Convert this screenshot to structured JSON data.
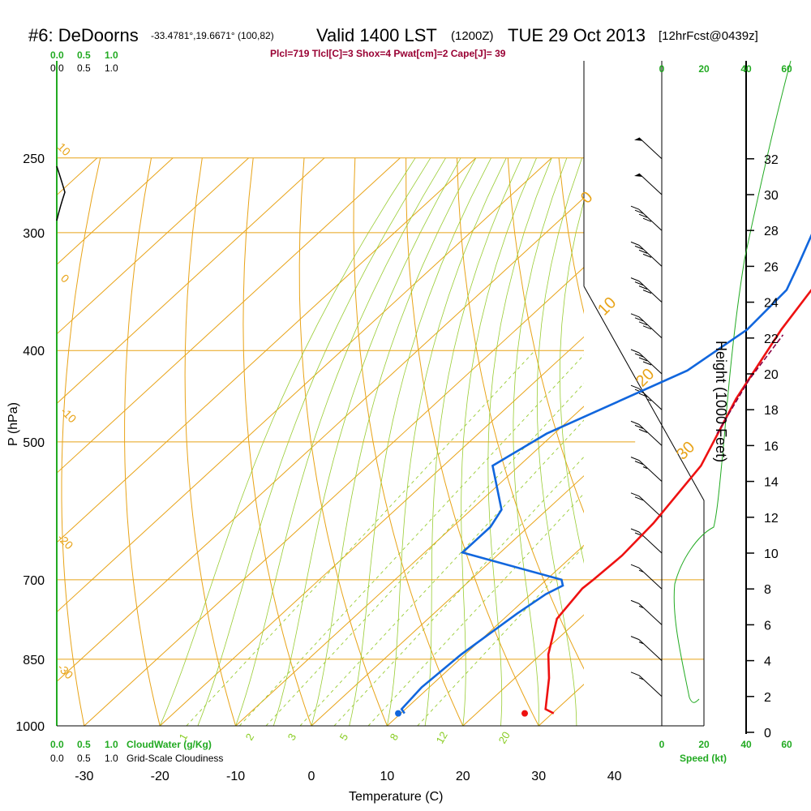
{
  "header": {
    "station": "#6: DeDoorns",
    "coords": "-33.4781°,19.6671° (100,82)",
    "valid": "Valid 1400 LST",
    "zulu": "(1200Z)",
    "date": "TUE 29 Oct 2013",
    "forecast": "[12hrFcst@0439z]",
    "indices": "Plcl=719 Tlcl[C]=3 Shox=4 Pwat[cm]=2 Cape[J]= 39"
  },
  "chart_data": {
    "type": "line",
    "subtype": "skew-T log-P sounding",
    "xlabel": "Temperature (C)",
    "ylabel": "P (hPa)",
    "right_label": "Height (1000 Feet)",
    "xlim": [
      -35,
      35
    ],
    "ylim": [
      1000,
      250
    ],
    "x_ticks": [
      "-30",
      "-20",
      "-10",
      "0",
      "10",
      "20",
      "30",
      "40"
    ],
    "pressure_ticks": [
      "250",
      "300",
      "400",
      "500",
      "700",
      "850",
      "1000"
    ],
    "height_ticks": [
      "0",
      "2",
      "4",
      "6",
      "8",
      "10",
      "12",
      "14",
      "16",
      "18",
      "20",
      "22",
      "24",
      "26",
      "28",
      "30",
      "32"
    ],
    "cloud_scale_top": [
      "0.0",
      "0.5",
      "1.0"
    ],
    "cloud_scale_bottom": [
      "0.0",
      "0.5",
      "1.0"
    ],
    "cloud_water_label": "CloudWater (g/Kg)",
    "cloudiness_label": "Grid-Scale Cloudiness",
    "speed_label": "Speed (kt)",
    "speed_ticks": [
      "0",
      "20",
      "40",
      "60"
    ],
    "isotherm_labels": [
      "10",
      "0",
      "-10",
      "-20",
      "-30"
    ],
    "dry_adiabat_labels": [
      "0",
      "10",
      "20",
      "30"
    ],
    "mixing_ratio_labels": [
      "1",
      "2",
      "3",
      "5",
      "8",
      "12",
      "20"
    ],
    "series": [
      {
        "name": "Temperature",
        "color": "#ee1111",
        "points": [
          [
            30.2,
            970
          ],
          [
            28.5,
            960
          ],
          [
            24.5,
            890
          ],
          [
            21,
            840
          ],
          [
            17,
            770
          ],
          [
            16,
            715
          ],
          [
            16.2,
            700
          ],
          [
            16.5,
            660
          ],
          [
            16,
            610
          ],
          [
            14,
            530
          ],
          [
            9,
            450
          ],
          [
            5,
            380
          ],
          [
            2.5,
            330
          ],
          [
            -0.5,
            300
          ],
          [
            -3,
            270
          ],
          [
            -3.5,
            255
          ]
        ]
      },
      {
        "name": "Dewpoint",
        "color": "#1166dd",
        "points": [
          [
            10.5,
            970
          ],
          [
            9.5,
            960
          ],
          [
            9,
            910
          ],
          [
            9.5,
            840
          ],
          [
            11,
            760
          ],
          [
            12,
            725
          ],
          [
            13,
            710
          ],
          [
            12,
            700
          ],
          [
            -5,
            655
          ],
          [
            -5,
            640
          ],
          [
            -5,
            615
          ],
          [
            -6,
            590
          ],
          [
            -13.5,
            530
          ],
          [
            -11,
            490
          ],
          [
            -1.5,
            420
          ],
          [
            0.5,
            380
          ],
          [
            0,
            345
          ],
          [
            -2,
            325
          ],
          [
            -6,
            290
          ],
          [
            -7,
            265
          ],
          [
            -7.5,
            255
          ]
        ]
      },
      {
        "name": "Parcel",
        "color": "#880044",
        "points": [
          [
            11.5,
            490
          ],
          [
            8,
            430
          ],
          [
            6,
            385
          ]
        ]
      }
    ],
    "surface_markers": [
      {
        "name": "Surface temperature",
        "x": 31.5,
        "p": 970,
        "color": "#ee1111"
      },
      {
        "name": "Surface dewpoint",
        "x": 14.8,
        "p": 970,
        "color": "#1166dd"
      }
    ],
    "wind_barbs": [
      {
        "h": 32,
        "speed": 50
      },
      {
        "h": 30,
        "speed": 50
      },
      {
        "h": 28,
        "speed": 40
      },
      {
        "h": 26,
        "speed": 40
      },
      {
        "h": 24,
        "speed": 40
      },
      {
        "h": 22,
        "speed": 40
      },
      {
        "h": 20,
        "speed": 40
      },
      {
        "h": 18,
        "speed": 35
      },
      {
        "h": 16,
        "speed": 30
      },
      {
        "h": 14,
        "speed": 25
      },
      {
        "h": 12,
        "speed": 20
      },
      {
        "h": 10,
        "speed": 20
      },
      {
        "h": 8,
        "speed": 15
      },
      {
        "h": 6,
        "speed": 15
      },
      {
        "h": 4,
        "speed": 15
      },
      {
        "h": 2,
        "speed": 15
      }
    ],
    "grid": true
  },
  "colors": {
    "isotherm": "#e8a317",
    "dry_adiabat": "#e8a317",
    "moist_adiabat": "#99cc33",
    "mixing_ratio": "#99cc33",
    "cloud_green": "#22aa22"
  }
}
